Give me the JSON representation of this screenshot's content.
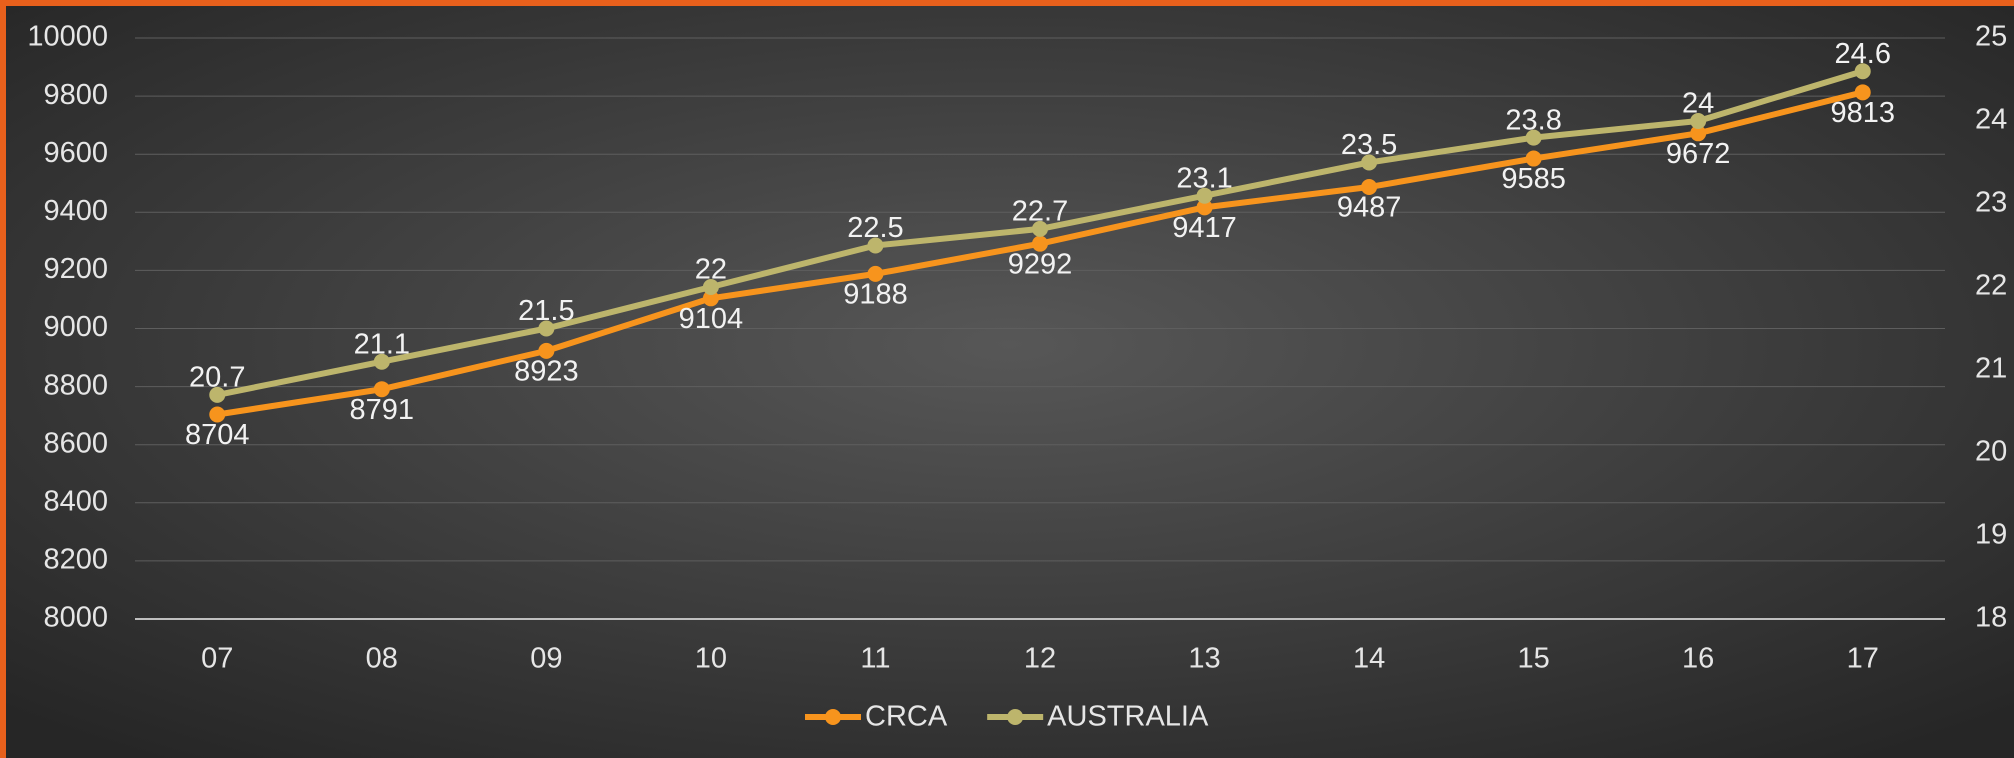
{
  "chart_data": {
    "type": "line",
    "categories": [
      "07",
      "08",
      "09",
      "10",
      "11",
      "12",
      "13",
      "14",
      "15",
      "16",
      "17"
    ],
    "series": [
      {
        "name": "CRCA",
        "color": "#f7941d",
        "values": [
          8704,
          8791,
          8923,
          9104,
          9188,
          9292,
          9417,
          9487,
          9585,
          9672,
          9813
        ]
      },
      {
        "name": "AUSTRALIA",
        "color": "#bdb56c",
        "axis": "y2",
        "values": [
          20.7,
          21.1,
          21.5,
          22,
          22.5,
          22.7,
          23.1,
          23.5,
          23.8,
          24,
          24.6
        ]
      }
    ],
    "ylim": [
      8000,
      10000
    ],
    "yticks": [
      8000,
      8200,
      8400,
      8600,
      8800,
      9000,
      9200,
      9400,
      9600,
      9800,
      10000
    ],
    "y2lim": [
      18,
      25
    ],
    "y2ticks": [
      18,
      19,
      20,
      21,
      22,
      23,
      24,
      25
    ],
    "grid": true,
    "legend": "bottom"
  }
}
